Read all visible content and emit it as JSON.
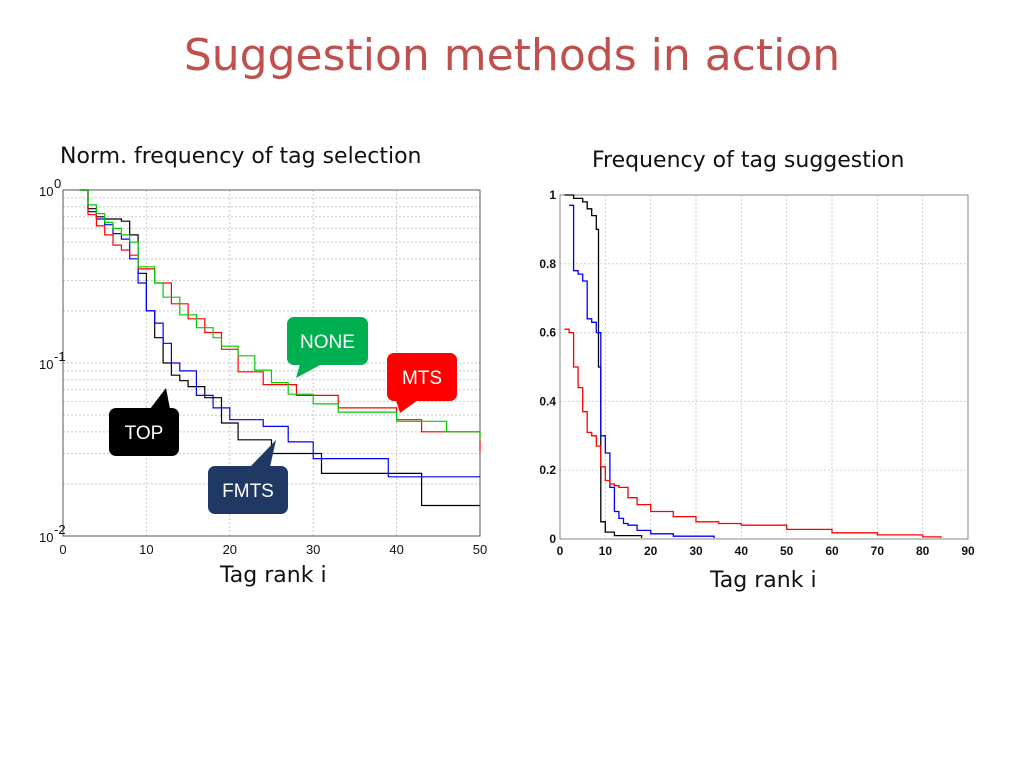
{
  "slide": {
    "title": "Suggestion methods in action"
  },
  "callouts": [
    {
      "label": "NONE",
      "color": "#00b050"
    },
    {
      "label": "MTS",
      "color": "#ff0000"
    },
    {
      "label": "TOP",
      "color": "#000000"
    },
    {
      "label": "FMTS",
      "color": "#1f3864"
    }
  ],
  "chart_data": [
    {
      "type": "line",
      "title": "Norm. frequency of tag selection",
      "xlabel": "Tag rank i",
      "ylabel": "",
      "xlim": [
        0,
        50
      ],
      "ylim": [
        0.01,
        1
      ],
      "yscale": "log",
      "grid": true,
      "xticks": [
        0,
        10,
        20,
        30,
        40,
        50
      ],
      "yticks": [
        {
          "base": "10",
          "exp": "0",
          "value": 1
        },
        {
          "base": "10",
          "exp": "-1",
          "value": 0.1
        },
        {
          "base": "10",
          "exp": "-2",
          "value": 0.01
        }
      ],
      "series": [
        {
          "name": "TOP",
          "color": "#000000",
          "x": [
            2,
            3,
            4,
            5,
            6,
            7,
            8,
            9,
            10,
            11,
            12,
            13,
            14,
            15,
            17,
            19,
            21,
            25,
            31,
            43,
            50
          ],
          "y": [
            1,
            0.78,
            0.7,
            0.68,
            0.68,
            0.66,
            0.55,
            0.33,
            0.2,
            0.14,
            0.1,
            0.085,
            0.079,
            0.073,
            0.063,
            0.045,
            0.036,
            0.03,
            0.023,
            0.015,
            0.015
          ]
        },
        {
          "name": "FMTS",
          "color": "#0000ff",
          "x": [
            2,
            3,
            4,
            5,
            6,
            7,
            8,
            9,
            10,
            11,
            12,
            13,
            14,
            16,
            18,
            20,
            24,
            27,
            30,
            39,
            50
          ],
          "y": [
            1,
            0.75,
            0.68,
            0.63,
            0.56,
            0.52,
            0.4,
            0.29,
            0.2,
            0.17,
            0.13,
            0.1,
            0.09,
            0.065,
            0.055,
            0.047,
            0.043,
            0.035,
            0.028,
            0.022,
            0.022
          ]
        },
        {
          "name": "MTS",
          "color": "#ff0000",
          "x": [
            2,
            3,
            4,
            5,
            6,
            7,
            8,
            9,
            11,
            13,
            15,
            17,
            19,
            21,
            24,
            28,
            33,
            40,
            43,
            50
          ],
          "y": [
            1,
            0.72,
            0.62,
            0.55,
            0.48,
            0.45,
            0.42,
            0.35,
            0.29,
            0.22,
            0.18,
            0.15,
            0.12,
            0.089,
            0.075,
            0.065,
            0.055,
            0.047,
            0.04,
            0.031
          ]
        },
        {
          "name": "NONE",
          "color": "#00cc00",
          "x": [
            2,
            3,
            4,
            5,
            6,
            7,
            8,
            9,
            11,
            12,
            14,
            16,
            18,
            19,
            21,
            23,
            25,
            27,
            30,
            33,
            40,
            46,
            50
          ],
          "y": [
            1,
            0.82,
            0.73,
            0.65,
            0.6,
            0.55,
            0.5,
            0.36,
            0.29,
            0.24,
            0.19,
            0.16,
            0.14,
            0.125,
            0.11,
            0.091,
            0.077,
            0.066,
            0.058,
            0.052,
            0.046,
            0.04,
            0.036
          ]
        }
      ]
    },
    {
      "type": "line",
      "title": "Frequency of tag suggestion",
      "xlabel": "Tag rank i",
      "ylabel": "",
      "xlim": [
        0,
        90
      ],
      "ylim": [
        0,
        1
      ],
      "grid": true,
      "xticks": [
        0,
        10,
        20,
        30,
        40,
        50,
        60,
        70,
        80,
        90
      ],
      "yticks": [
        0,
        0.2,
        0.4,
        0.6,
        0.8,
        1
      ],
      "series": [
        {
          "name": "TOP",
          "color": "#000000",
          "x": [
            1,
            3,
            5,
            6,
            7,
            8,
            8.5,
            9,
            10,
            12,
            18
          ],
          "y": [
            1,
            0.99,
            0.98,
            0.96,
            0.94,
            0.9,
            0.5,
            0.05,
            0.02,
            0.01,
            0.003
          ]
        },
        {
          "name": "FMTS",
          "color": "#0000ff",
          "x": [
            2,
            3,
            4,
            5,
            6,
            7,
            8,
            9,
            10,
            11,
            12,
            13,
            14,
            15,
            17,
            20,
            25,
            34
          ],
          "y": [
            0.97,
            0.78,
            0.77,
            0.75,
            0.64,
            0.63,
            0.6,
            0.3,
            0.25,
            0.15,
            0.08,
            0.06,
            0.045,
            0.04,
            0.025,
            0.015,
            0.008,
            0.003
          ]
        },
        {
          "name": "MTS",
          "color": "#ff0000",
          "x": [
            1,
            2,
            3,
            4,
            5,
            6,
            7,
            8,
            9,
            10,
            11,
            12,
            13,
            15,
            17,
            20,
            25,
            30,
            35,
            40,
            50,
            60,
            70,
            80,
            84
          ],
          "y": [
            0.61,
            0.6,
            0.5,
            0.44,
            0.37,
            0.31,
            0.3,
            0.27,
            0.21,
            0.17,
            0.16,
            0.155,
            0.15,
            0.12,
            0.1,
            0.08,
            0.065,
            0.05,
            0.045,
            0.04,
            0.028,
            0.018,
            0.012,
            0.006,
            0.003
          ]
        }
      ]
    }
  ]
}
